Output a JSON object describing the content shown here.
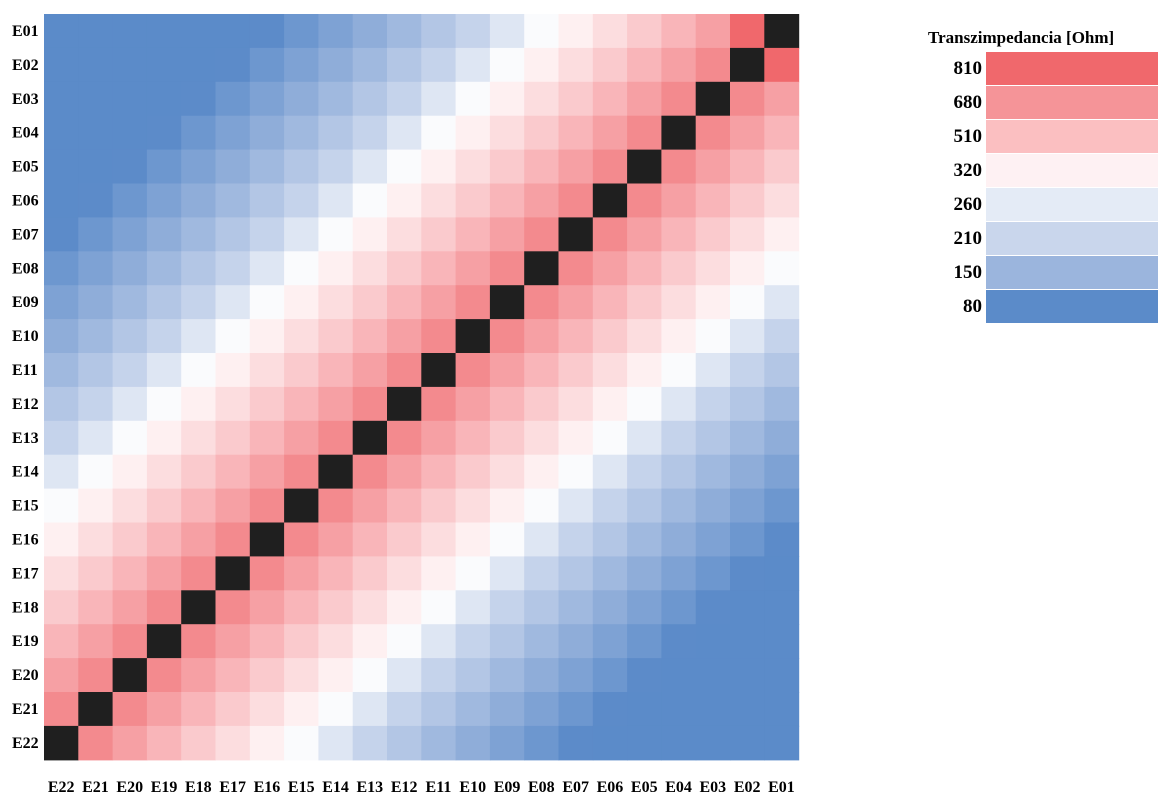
{
  "chart_data": {
    "type": "heatmap",
    "title": "",
    "xlabel": "",
    "ylabel": "",
    "rows": [
      "E01",
      "E02",
      "E03",
      "E04",
      "E05",
      "E06",
      "E07",
      "E08",
      "E09",
      "E10",
      "E11",
      "E12",
      "E13",
      "E14",
      "E15",
      "E16",
      "E17",
      "E18",
      "E19",
      "E20",
      "E21",
      "E22"
    ],
    "columns": [
      "E22",
      "E21",
      "E20",
      "E19",
      "E18",
      "E17",
      "E16",
      "E15",
      "E14",
      "E13",
      "E12",
      "E11",
      "E10",
      "E09",
      "E08",
      "E07",
      "E06",
      "E05",
      "E04",
      "E03",
      "E02",
      "E01"
    ],
    "diagonal": "E01-E01 to E22-E22 rendered black (self)",
    "colorbar": {
      "title": "Transzimpedancia [Ohm]",
      "levels": [
        810,
        680,
        510,
        320,
        260,
        210,
        150,
        80
      ],
      "colors": [
        "#f0686c",
        "#f59498",
        "#fbbfc1",
        "#fef1f3",
        "#e4ebf6",
        "#c9d6ec",
        "#9bb5dd",
        "#5b8bc9"
      ]
    },
    "diagonal_color": "#1f1f1f"
  }
}
